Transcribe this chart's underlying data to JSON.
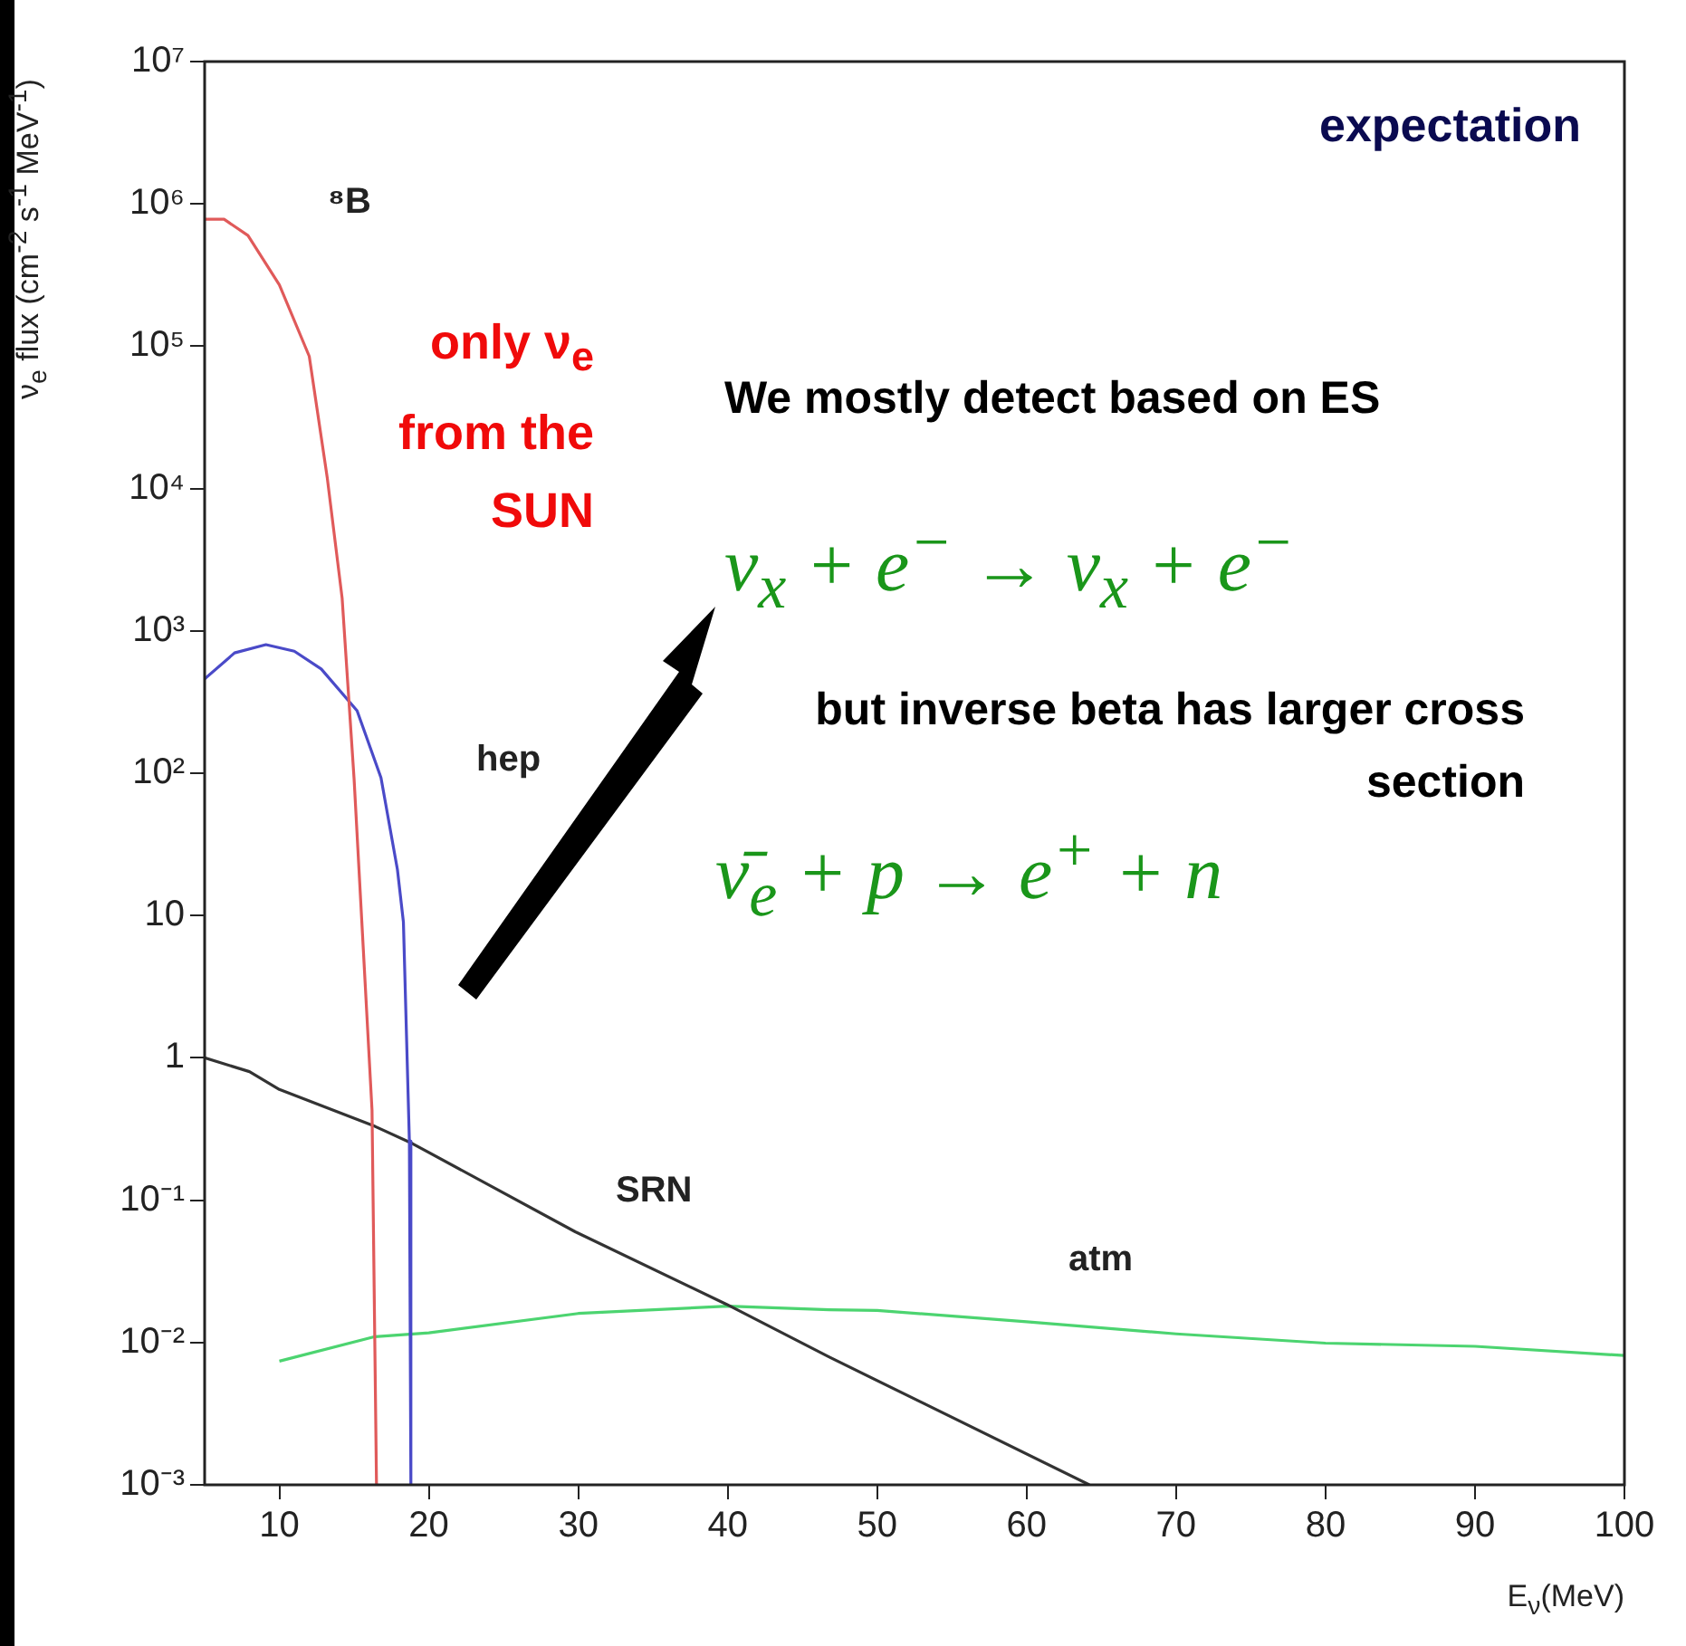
{
  "chart_data": {
    "type": "line",
    "xlabel": "E$_{ν}$(MeV)",
    "ylabel": "ν$_{e}$ flux (cm$^{-2}$ s$^{-1}$ MeV$^{-1}$)",
    "xlim": [
      5,
      100
    ],
    "xticks": [
      10,
      20,
      30,
      40,
      50,
      60,
      70,
      80,
      90,
      100
    ],
    "ylim": [
      0.001,
      10000000
    ],
    "yticks": [
      {
        "value": 0.001,
        "label": "10⁻³"
      },
      {
        "value": 0.01,
        "label": "10⁻²"
      },
      {
        "value": 0.1,
        "label": "10⁻¹"
      },
      1,
      10,
      {
        "value": 100,
        "label": "10²"
      },
      {
        "value": 1000,
        "label": "10³"
      },
      {
        "value": 10000,
        "label": "10⁴"
      },
      {
        "value": 100000,
        "label": "10⁵"
      },
      {
        "value": 1000000,
        "label": "10⁶"
      },
      {
        "value": 10000000,
        "label": "10⁷"
      }
    ],
    "log": "y",
    "grid": false,
    "legend": false,
    "marker": "none",
    "line_style": "solid",
    "series": [
      {
        "name": "⁸B",
        "color": "#e05a5a",
        "x": [
          5,
          6.3,
          7.9,
          10,
          12,
          13.2,
          14.2,
          15,
          16.2,
          16.5
        ],
        "values": [
          780000,
          780000,
          600000,
          270000,
          85000,
          12000,
          1700,
          91,
          0.43,
          0.001
        ]
      },
      {
        "name": "hep",
        "color": "#4a4ac8",
        "x": [
          5,
          7,
          9.1,
          11,
          12.8,
          15.2,
          16.8,
          17.9,
          18.3,
          18.7,
          18.8
        ],
        "values": [
          460,
          700,
          800,
          720,
          540,
          275,
          93,
          21,
          9,
          0.26,
          0.001
        ]
      },
      {
        "name": "SRN",
        "color": "#333333",
        "x": [
          5,
          8,
          10,
          16.4,
          18.9,
          29.8,
          39.9,
          46.8,
          64.2
        ],
        "values": [
          1,
          0.8,
          0.6,
          0.33,
          0.25,
          0.06,
          0.0186,
          0.0079,
          0.001
        ]
      },
      {
        "name": "atm",
        "color": "#4cd470",
        "x": [
          10,
          16.4,
          20,
          30,
          40,
          46.8,
          50,
          60,
          70,
          80,
          90,
          100
        ],
        "values": [
          0.0074,
          0.011,
          0.0117,
          0.016,
          0.018,
          0.017,
          0.0168,
          0.014,
          0.0115,
          0.0099,
          0.0094,
          0.0081
        ]
      }
    ],
    "annotations": [
      "expectation",
      "only ν$_{e}$ from the SUN",
      "We mostly detect based on ES",
      "ν$_{x}$ + e$^{−}$ → ν$_{x}$ + e$^{−}$",
      "but inverse beta has larger cross section",
      "ν̄$_{e}$ + p → e$^{+}$ + n"
    ]
  }
}
